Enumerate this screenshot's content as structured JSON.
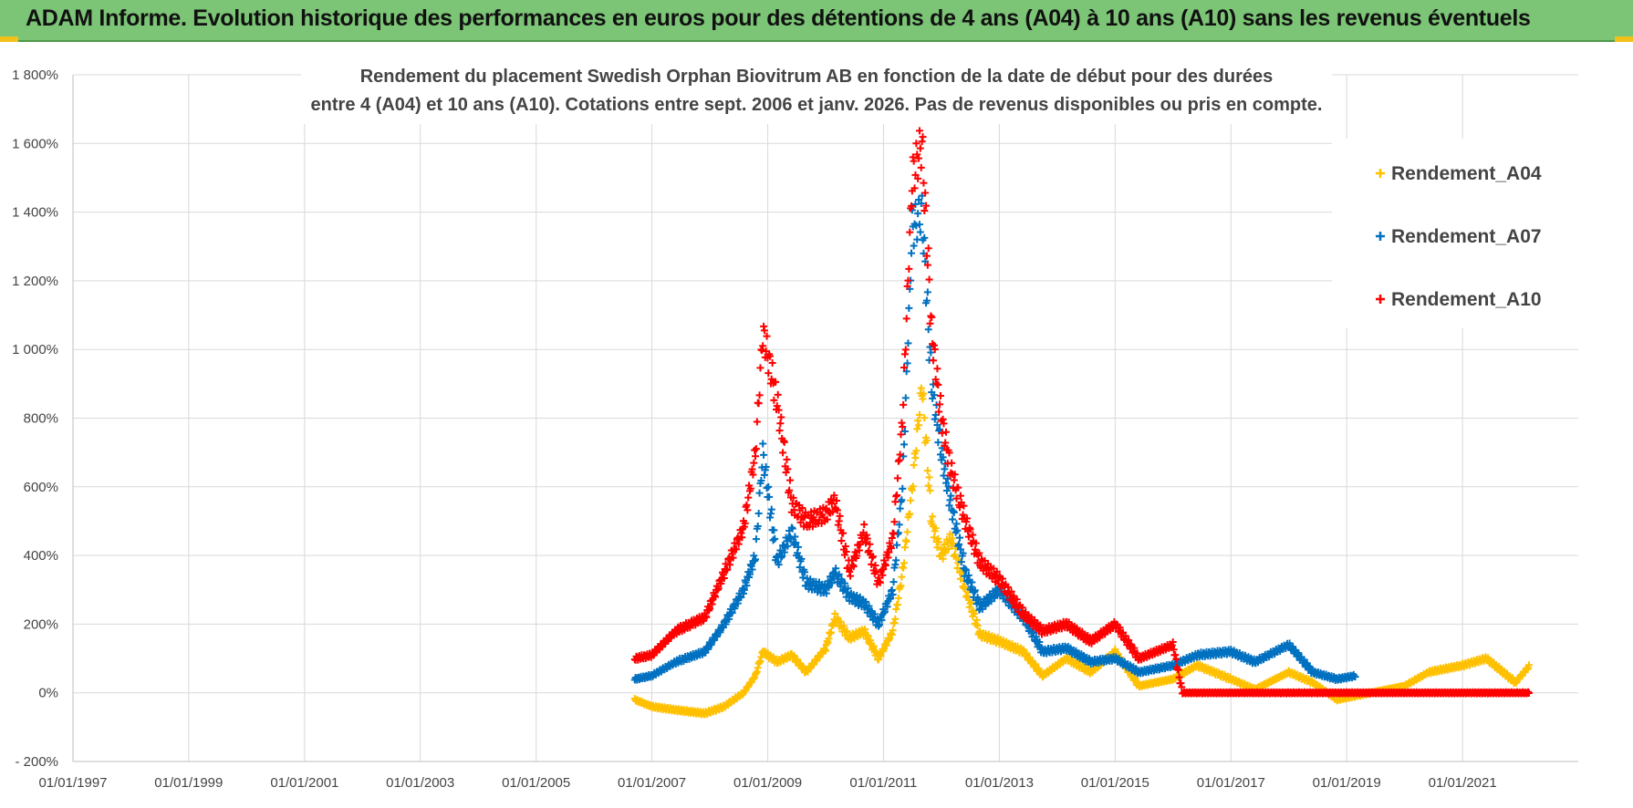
{
  "header": {
    "title": "ADAM Informe. Evolution historique des performances en euros pour des détentions de 4 ans (A04) à 10 ans (A10) sans les revenus éventuels",
    "background": "#7cc576",
    "accent": "#f2c21b"
  },
  "chart_data": {
    "type": "scatter",
    "title_lines": [
      "Rendement du placement Swedish Orphan Biovitrum AB en fonction de la date de début pour des durées",
      "entre 4 (A04) et 10 ans (A10).  Cotations entre sept. 2006 et janv. 2026. Pas de revenus disponibles ou pris en compte."
    ],
    "xlabel": "",
    "ylabel": "",
    "xlim": [
      "1997-01-01",
      "2023-01-01"
    ],
    "ylim": [
      -200,
      1800
    ],
    "y_ticks": [
      -200,
      0,
      200,
      400,
      600,
      800,
      1000,
      1200,
      1400,
      1600,
      1800
    ],
    "y_tick_labels": [
      "- 200%",
      "0%",
      "200%",
      "400%",
      "600%",
      "800%",
      "1 000%",
      "1 200%",
      "1 400%",
      "1 600%",
      "1 800%"
    ],
    "x_ticks": [
      "1997-01-01",
      "1999-01-01",
      "2001-01-01",
      "2003-01-01",
      "2005-01-01",
      "2007-01-01",
      "2009-01-01",
      "2011-01-01",
      "2013-01-01",
      "2015-01-01",
      "2017-01-01",
      "2019-01-01",
      "2021-01-01"
    ],
    "x_tick_labels": [
      "01/01/1997",
      "01/01/1999",
      "01/01/2001",
      "01/01/2003",
      "01/01/2005",
      "01/01/2007",
      "01/01/2009",
      "01/01/2011",
      "01/01/2013",
      "01/01/2015",
      "01/01/2017",
      "01/01/2019",
      "01/01/2021"
    ],
    "grid": true,
    "legend_position": "top-right",
    "marker": "+",
    "series": [
      {
        "name": "Rendement_A04",
        "color": "#ffc000",
        "points": [
          [
            "2006-09-15",
            -20
          ],
          [
            "2007-01-01",
            -40
          ],
          [
            "2007-06-01",
            -50
          ],
          [
            "2007-12-01",
            -60
          ],
          [
            "2008-04-01",
            -40
          ],
          [
            "2008-08-01",
            0
          ],
          [
            "2008-10-15",
            50
          ],
          [
            "2008-12-01",
            120
          ],
          [
            "2009-03-01",
            90
          ],
          [
            "2009-06-01",
            110
          ],
          [
            "2009-09-01",
            60
          ],
          [
            "2010-01-01",
            130
          ],
          [
            "2010-03-01",
            220
          ],
          [
            "2010-06-01",
            160
          ],
          [
            "2010-09-01",
            180
          ],
          [
            "2010-12-01",
            100
          ],
          [
            "2011-03-01",
            180
          ],
          [
            "2011-05-01",
            350
          ],
          [
            "2011-07-01",
            600
          ],
          [
            "2011-09-01",
            900
          ],
          [
            "2011-11-01",
            500
          ],
          [
            "2012-01-01",
            400
          ],
          [
            "2012-03-01",
            450
          ],
          [
            "2012-06-01",
            300
          ],
          [
            "2012-09-01",
            170
          ],
          [
            "2013-01-01",
            150
          ],
          [
            "2013-06-01",
            120
          ],
          [
            "2013-10-01",
            50
          ],
          [
            "2014-03-01",
            100
          ],
          [
            "2014-08-01",
            60
          ],
          [
            "2015-01-01",
            120
          ],
          [
            "2015-06-01",
            20
          ],
          [
            "2016-01-01",
            40
          ],
          [
            "2016-06-01",
            80
          ],
          [
            "2017-01-01",
            40
          ],
          [
            "2017-06-01",
            10
          ],
          [
            "2018-01-01",
            60
          ],
          [
            "2018-06-01",
            30
          ],
          [
            "2018-11-01",
            -20
          ],
          [
            "2019-06-01",
            0
          ],
          [
            "2020-01-01",
            20
          ],
          [
            "2020-06-01",
            60
          ],
          [
            "2021-01-01",
            80
          ],
          [
            "2021-06-01",
            100
          ],
          [
            "2021-12-01",
            30
          ],
          [
            "2022-03-01",
            80
          ]
        ]
      },
      {
        "name": "Rendement_A07",
        "color": "#0070c0",
        "points": [
          [
            "2006-09-15",
            40
          ],
          [
            "2007-01-01",
            50
          ],
          [
            "2007-06-01",
            90
          ],
          [
            "2007-12-01",
            120
          ],
          [
            "2008-04-01",
            200
          ],
          [
            "2008-08-01",
            300
          ],
          [
            "2008-10-15",
            400
          ],
          [
            "2008-12-01",
            700
          ],
          [
            "2009-03-01",
            380
          ],
          [
            "2009-06-01",
            470
          ],
          [
            "2009-09-01",
            320
          ],
          [
            "2010-01-01",
            300
          ],
          [
            "2010-03-01",
            350
          ],
          [
            "2010-06-01",
            280
          ],
          [
            "2010-09-01",
            260
          ],
          [
            "2010-12-01",
            200
          ],
          [
            "2011-03-01",
            300
          ],
          [
            "2011-05-01",
            600
          ],
          [
            "2011-07-01",
            1350
          ],
          [
            "2011-09-01",
            1400
          ],
          [
            "2011-11-01",
            900
          ],
          [
            "2012-01-01",
            700
          ],
          [
            "2012-03-01",
            550
          ],
          [
            "2012-06-01",
            350
          ],
          [
            "2012-09-01",
            250
          ],
          [
            "2013-01-01",
            300
          ],
          [
            "2013-06-01",
            220
          ],
          [
            "2013-10-01",
            120
          ],
          [
            "2014-03-01",
            130
          ],
          [
            "2014-08-01",
            90
          ],
          [
            "2015-01-01",
            100
          ],
          [
            "2015-06-01",
            60
          ],
          [
            "2016-01-01",
            80
          ],
          [
            "2016-06-01",
            110
          ],
          [
            "2017-01-01",
            120
          ],
          [
            "2017-06-01",
            90
          ],
          [
            "2018-01-01",
            140
          ],
          [
            "2018-06-01",
            60
          ],
          [
            "2018-11-01",
            40
          ],
          [
            "2019-03-01",
            50
          ]
        ]
      },
      {
        "name": "Rendement_A10",
        "color": "#ff0000",
        "points": [
          [
            "2006-09-15",
            100
          ],
          [
            "2007-01-01",
            110
          ],
          [
            "2007-06-01",
            180
          ],
          [
            "2007-12-01",
            220
          ],
          [
            "2008-04-01",
            350
          ],
          [
            "2008-08-01",
            480
          ],
          [
            "2008-10-15",
            700
          ],
          [
            "2008-12-01",
            1050
          ],
          [
            "2009-03-01",
            850
          ],
          [
            "2009-06-01",
            550
          ],
          [
            "2009-09-01",
            500
          ],
          [
            "2010-01-01",
            520
          ],
          [
            "2010-03-01",
            560
          ],
          [
            "2010-06-01",
            350
          ],
          [
            "2010-09-01",
            470
          ],
          [
            "2010-12-01",
            320
          ],
          [
            "2011-03-01",
            450
          ],
          [
            "2011-05-01",
            800
          ],
          [
            "2011-07-01",
            1500
          ],
          [
            "2011-09-01",
            1600
          ],
          [
            "2011-11-01",
            1050
          ],
          [
            "2012-01-01",
            800
          ],
          [
            "2012-03-01",
            650
          ],
          [
            "2012-06-01",
            500
          ],
          [
            "2012-09-01",
            380
          ],
          [
            "2013-01-01",
            330
          ],
          [
            "2013-06-01",
            230
          ],
          [
            "2013-10-01",
            180
          ],
          [
            "2014-03-01",
            200
          ],
          [
            "2014-08-01",
            150
          ],
          [
            "2015-01-01",
            200
          ],
          [
            "2015-06-01",
            100
          ],
          [
            "2016-01-01",
            140
          ],
          [
            "2016-03-01",
            0
          ],
          [
            "2017-01-01",
            0
          ],
          [
            "2018-01-01",
            0
          ],
          [
            "2019-01-01",
            0
          ],
          [
            "2020-01-01",
            0
          ],
          [
            "2021-01-01",
            0
          ],
          [
            "2022-03-01",
            0
          ]
        ]
      }
    ]
  }
}
